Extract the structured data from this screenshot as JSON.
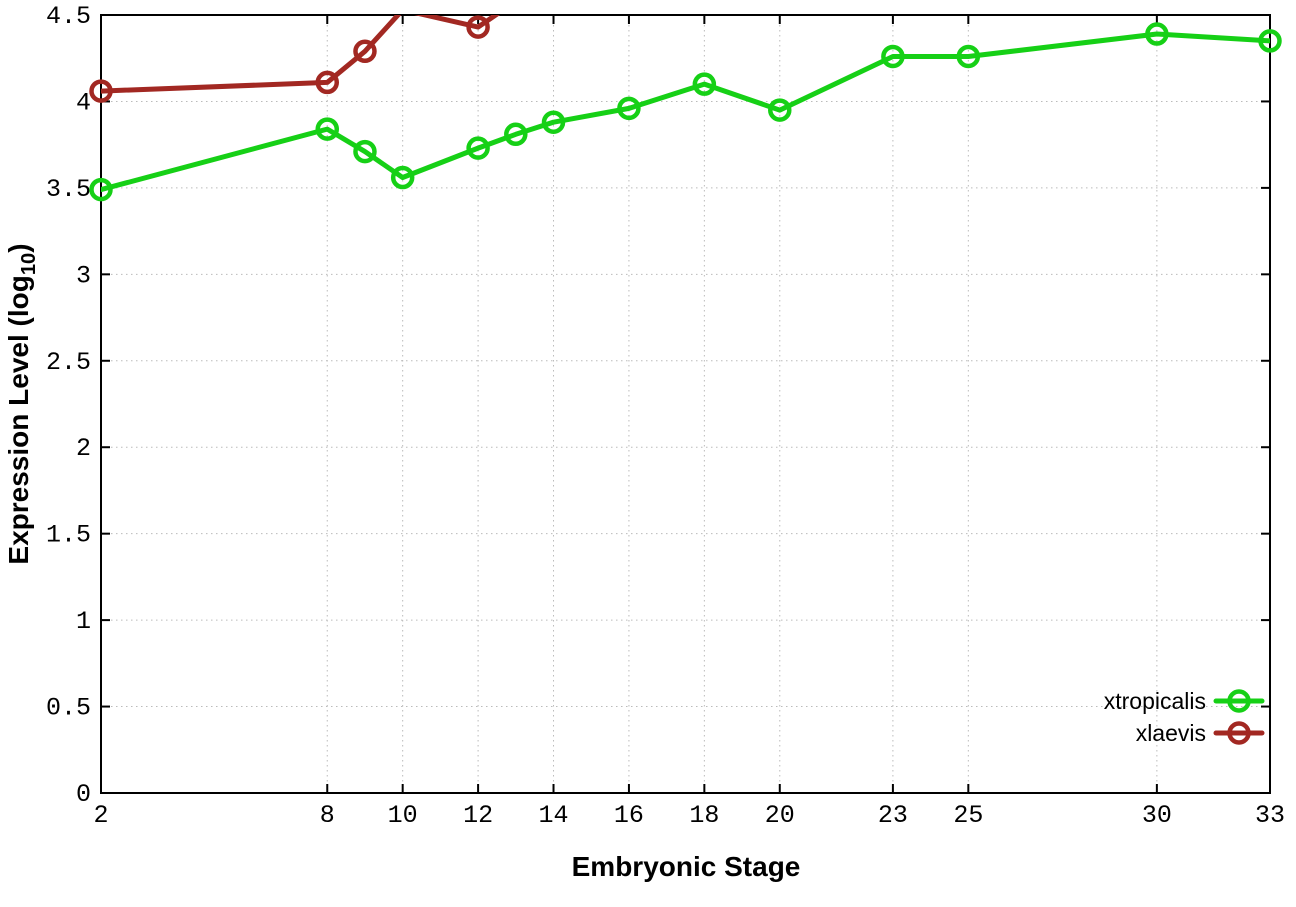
{
  "figure": {
    "background": "#ffffff",
    "border_color": "#000000",
    "grid_color": "#bbbbbb",
    "tick_label_color": "#000000"
  },
  "chart_data": {
    "type": "line",
    "title": "",
    "xlabel": "Embryonic Stage",
    "ylabel": "Expression Level (log10)",
    "ylabel_parts": {
      "prefix": "Expression Level (log",
      "sub": "10",
      "suffix": ")"
    },
    "xlim": [
      2,
      33
    ],
    "ylim": [
      0,
      4.5
    ],
    "xticks": [
      2,
      8,
      10,
      12,
      14,
      16,
      18,
      20,
      23,
      25,
      30,
      33
    ],
    "yticks": [
      0,
      0.5,
      1,
      1.5,
      2,
      2.5,
      3,
      3.5,
      4,
      4.5
    ],
    "grid": "dotted",
    "legend": {
      "position": "inside-bottom-right",
      "entries": [
        "xtropicalis",
        "xlaevis"
      ]
    },
    "series": [
      {
        "name": "xtropicalis",
        "color": "#16d016",
        "marker": "open-circle",
        "x": [
          2,
          8,
          9,
          10,
          12,
          13,
          14,
          16,
          18,
          20,
          23,
          25,
          30,
          33
        ],
        "y": [
          3.49,
          3.84,
          3.71,
          3.56,
          3.73,
          3.81,
          3.88,
          3.96,
          4.1,
          3.95,
          4.26,
          4.26,
          4.39,
          4.35
        ]
      },
      {
        "name": "xlaevis",
        "color": "#a22822",
        "marker": "open-circle",
        "x": [
          2,
          8,
          9,
          10,
          12,
          13
        ],
        "y": [
          4.06,
          4.11,
          4.29,
          4.53,
          4.43,
          4.58
        ]
      }
    ]
  }
}
